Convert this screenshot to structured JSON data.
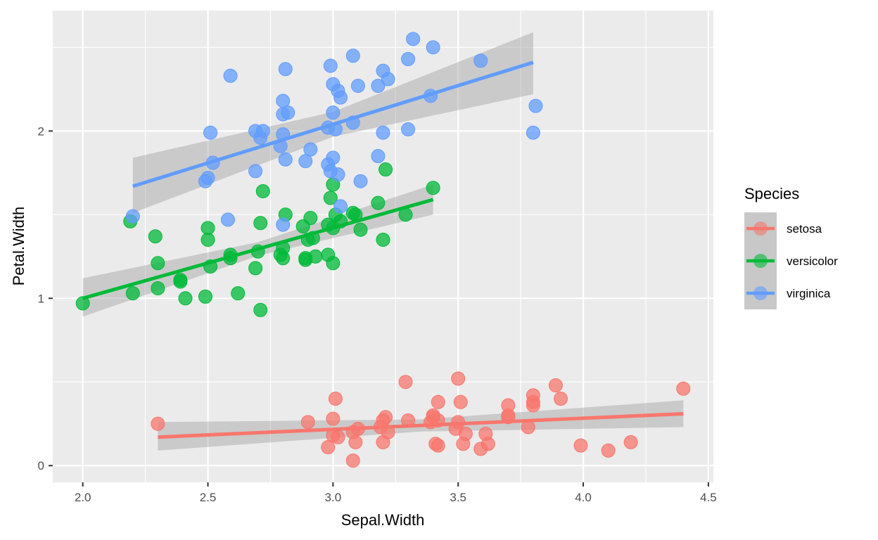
{
  "chart_data": {
    "type": "scatter",
    "xlabel": "Sepal.Width",
    "ylabel": "Petal.Width",
    "xlim": [
      1.88,
      4.52
    ],
    "ylim": [
      -0.1,
      2.72
    ],
    "x_ticks": [
      2.0,
      2.5,
      3.0,
      3.5,
      4.0,
      4.5
    ],
    "x_tick_labels": [
      "2.0",
      "2.5",
      "3.0",
      "3.5",
      "4.0",
      "4.5"
    ],
    "y_ticks": [
      0,
      1,
      2
    ],
    "y_tick_labels": [
      "0",
      "1",
      "2"
    ],
    "grid": true,
    "legend": {
      "title": "Species",
      "position": "right"
    },
    "smooth": "lm with 95% confidence band",
    "series": [
      {
        "name": "setosa",
        "color": "#F8766D",
        "fit": {
          "x_range": [
            2.3,
            4.4
          ],
          "y_start": 0.17,
          "y_end": 0.31,
          "band_start": [
            0.09,
            0.26
          ],
          "band_end": [
            0.23,
            0.39
          ]
        },
        "points": [
          [
            2.3,
            0.25
          ],
          [
            2.9,
            0.26
          ],
          [
            2.98,
            0.11
          ],
          [
            3.0,
            0.28
          ],
          [
            3.0,
            0.18
          ],
          [
            3.01,
            0.4
          ],
          [
            3.02,
            0.17
          ],
          [
            3.08,
            0.03
          ],
          [
            3.08,
            0.2
          ],
          [
            3.09,
            0.14
          ],
          [
            3.1,
            0.22
          ],
          [
            3.19,
            0.23
          ],
          [
            3.2,
            0.27
          ],
          [
            3.2,
            0.14
          ],
          [
            3.21,
            0.29
          ],
          [
            3.22,
            0.2
          ],
          [
            3.29,
            0.5
          ],
          [
            3.3,
            0.27
          ],
          [
            3.39,
            0.26
          ],
          [
            3.4,
            0.3
          ],
          [
            3.4,
            0.29
          ],
          [
            3.41,
            0.13
          ],
          [
            3.42,
            0.12
          ],
          [
            3.42,
            0.38
          ],
          [
            3.42,
            0.27
          ],
          [
            3.49,
            0.22
          ],
          [
            3.5,
            0.52
          ],
          [
            3.5,
            0.26
          ],
          [
            3.51,
            0.38
          ],
          [
            3.52,
            0.13
          ],
          [
            3.53,
            0.19
          ],
          [
            3.59,
            0.1
          ],
          [
            3.61,
            0.19
          ],
          [
            3.62,
            0.13
          ],
          [
            3.7,
            0.36
          ],
          [
            3.7,
            0.3
          ],
          [
            3.7,
            0.29
          ],
          [
            3.78,
            0.23
          ],
          [
            3.8,
            0.42
          ],
          [
            3.8,
            0.36
          ],
          [
            3.8,
            0.38
          ],
          [
            3.89,
            0.48
          ],
          [
            3.91,
            0.4
          ],
          [
            3.99,
            0.12
          ],
          [
            4.1,
            0.09
          ],
          [
            4.19,
            0.14
          ],
          [
            4.4,
            0.46
          ]
        ]
      },
      {
        "name": "versicolor",
        "color": "#00BA38",
        "fit": {
          "x_range": [
            2.0,
            3.4
          ],
          "y_start": 1.0,
          "y_end": 1.59,
          "band_start": [
            0.89,
            1.12
          ],
          "band_end": [
            1.5,
            1.68
          ]
        },
        "points": [
          [
            2.0,
            0.97
          ],
          [
            2.19,
            1.46
          ],
          [
            2.2,
            1.03
          ],
          [
            2.29,
            1.37
          ],
          [
            2.3,
            1.21
          ],
          [
            2.3,
            1.06
          ],
          [
            2.39,
            1.11
          ],
          [
            2.39,
            1.1
          ],
          [
            2.41,
            1.0
          ],
          [
            2.49,
            1.01
          ],
          [
            2.5,
            1.35
          ],
          [
            2.5,
            1.42
          ],
          [
            2.51,
            1.19
          ],
          [
            2.59,
            1.26
          ],
          [
            2.59,
            1.24
          ],
          [
            2.62,
            1.03
          ],
          [
            2.69,
            1.18
          ],
          [
            2.7,
            1.28
          ],
          [
            2.71,
            1.45
          ],
          [
            2.71,
            0.93
          ],
          [
            2.72,
            1.64
          ],
          [
            2.79,
            1.26
          ],
          [
            2.8,
            1.24
          ],
          [
            2.8,
            1.3
          ],
          [
            2.81,
            1.5
          ],
          [
            2.88,
            1.43
          ],
          [
            2.89,
            1.23
          ],
          [
            2.89,
            1.24
          ],
          [
            2.9,
            1.35
          ],
          [
            2.91,
            1.48
          ],
          [
            2.92,
            1.36
          ],
          [
            2.93,
            1.25
          ],
          [
            2.98,
            1.26
          ],
          [
            2.98,
            1.44
          ],
          [
            2.99,
            1.6
          ],
          [
            3.0,
            1.68
          ],
          [
            3.0,
            1.42
          ],
          [
            3.0,
            1.21
          ],
          [
            3.01,
            1.5
          ],
          [
            3.03,
            1.46
          ],
          [
            3.08,
            1.51
          ],
          [
            3.09,
            1.5
          ],
          [
            3.11,
            1.41
          ],
          [
            3.18,
            1.57
          ],
          [
            3.2,
            1.35
          ],
          [
            3.21,
            1.77
          ],
          [
            3.29,
            1.5
          ],
          [
            3.4,
            1.66
          ]
        ]
      },
      {
        "name": "virginica",
        "color": "#619CFF",
        "fit": {
          "x_range": [
            2.2,
            3.8
          ],
          "y_start": 1.67,
          "y_end": 2.41,
          "band_start": [
            1.51,
            1.84
          ],
          "band_end": [
            2.22,
            2.59
          ]
        },
        "points": [
          [
            2.2,
            1.49
          ],
          [
            2.49,
            1.7
          ],
          [
            2.5,
            1.72
          ],
          [
            2.51,
            1.99
          ],
          [
            2.52,
            1.81
          ],
          [
            2.58,
            1.47
          ],
          [
            2.59,
            2.33
          ],
          [
            2.69,
            1.76
          ],
          [
            2.69,
            2.0
          ],
          [
            2.71,
            1.96
          ],
          [
            2.72,
            2.0
          ],
          [
            2.79,
            1.91
          ],
          [
            2.8,
            1.98
          ],
          [
            2.8,
            1.44
          ],
          [
            2.8,
            2.18
          ],
          [
            2.8,
            2.1
          ],
          [
            2.81,
            1.83
          ],
          [
            2.81,
            2.37
          ],
          [
            2.82,
            2.11
          ],
          [
            2.89,
            1.82
          ],
          [
            2.91,
            1.89
          ],
          [
            2.98,
            1.8
          ],
          [
            2.98,
            2.02
          ],
          [
            2.99,
            2.39
          ],
          [
            2.99,
            1.76
          ],
          [
            3.0,
            1.84
          ],
          [
            3.0,
            2.11
          ],
          [
            3.0,
            2.28
          ],
          [
            3.01,
            2.01
          ],
          [
            3.02,
            2.24
          ],
          [
            3.02,
            1.74
          ],
          [
            3.03,
            2.2
          ],
          [
            3.03,
            1.55
          ],
          [
            3.08,
            2.45
          ],
          [
            3.08,
            2.05
          ],
          [
            3.1,
            2.27
          ],
          [
            3.11,
            1.7
          ],
          [
            3.18,
            2.27
          ],
          [
            3.18,
            1.85
          ],
          [
            3.2,
            2.36
          ],
          [
            3.2,
            1.99
          ],
          [
            3.22,
            2.31
          ],
          [
            3.3,
            2.43
          ],
          [
            3.3,
            2.01
          ],
          [
            3.32,
            2.55
          ],
          [
            3.39,
            2.21
          ],
          [
            3.4,
            2.5
          ],
          [
            3.59,
            2.42
          ],
          [
            3.8,
            1.99
          ],
          [
            3.81,
            2.15
          ]
        ]
      }
    ]
  }
}
